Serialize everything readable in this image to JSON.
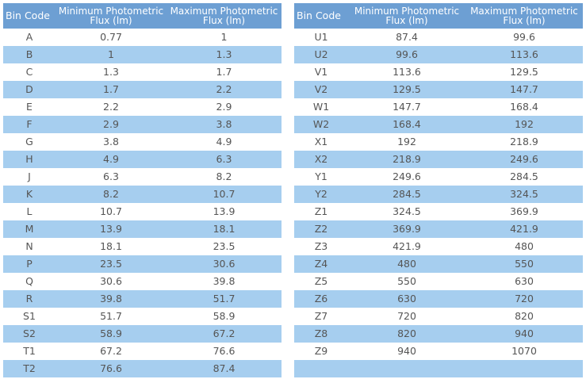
{
  "headers": {
    "bin_code": "Bin Code",
    "min_flux": "Minimum Photometric Flux (lm)",
    "max_flux": "Maximum Photometric Flux (lm)"
  },
  "left_rows": [
    [
      "A",
      "0.77",
      "1"
    ],
    [
      "B",
      "1",
      "1.3"
    ],
    [
      "C",
      "1.3",
      "1.7"
    ],
    [
      "D",
      "1.7",
      "2.2"
    ],
    [
      "E",
      "2.2",
      "2.9"
    ],
    [
      "F",
      "2.9",
      "3.8"
    ],
    [
      "G",
      "3.8",
      "4.9"
    ],
    [
      "H",
      "4.9",
      "6.3"
    ],
    [
      "J",
      "6.3",
      "8.2"
    ],
    [
      "K",
      "8.2",
      "10.7"
    ],
    [
      "L",
      "10.7",
      "13.9"
    ],
    [
      "M",
      "13.9",
      "18.1"
    ],
    [
      "N",
      "18.1",
      "23.5"
    ],
    [
      "P",
      "23.5",
      "30.6"
    ],
    [
      "Q",
      "30.6",
      "39.8"
    ],
    [
      "R",
      "39.8",
      "51.7"
    ],
    [
      "S1",
      "51.7",
      "58.9"
    ],
    [
      "S2",
      "58.9",
      "67.2"
    ],
    [
      "T1",
      "67.2",
      "76.6"
    ],
    [
      "T2",
      "76.6",
      "87.4"
    ]
  ],
  "right_rows": [
    [
      "U1",
      "87.4",
      "99.6"
    ],
    [
      "U2",
      "99.6",
      "113.6"
    ],
    [
      "V1",
      "113.6",
      "129.5"
    ],
    [
      "V2",
      "129.5",
      "147.7"
    ],
    [
      "W1",
      "147.7",
      "168.4"
    ],
    [
      "W2",
      "168.4",
      "192"
    ],
    [
      "X1",
      "192",
      "218.9"
    ],
    [
      "X2",
      "218.9",
      "249.6"
    ],
    [
      "Y1",
      "249.6",
      "284.5"
    ],
    [
      "Y2",
      "284.5",
      "324.5"
    ],
    [
      "Z1",
      "324.5",
      "369.9"
    ],
    [
      "Z2",
      "369.9",
      "421.9"
    ],
    [
      "Z3",
      "421.9",
      "480"
    ],
    [
      "Z4",
      "480",
      "550"
    ],
    [
      "Z5",
      "550",
      "630"
    ],
    [
      "Z6",
      "630",
      "720"
    ],
    [
      "Z7",
      "720",
      "820"
    ],
    [
      "Z8",
      "820",
      "940"
    ],
    [
      "Z9",
      "940",
      "1070"
    ],
    [
      "",
      "",
      ""
    ]
  ],
  "colors": {
    "header_bg": "#6d9fd3",
    "stripe_bg": "#a6ceef",
    "text": "#555555"
  }
}
